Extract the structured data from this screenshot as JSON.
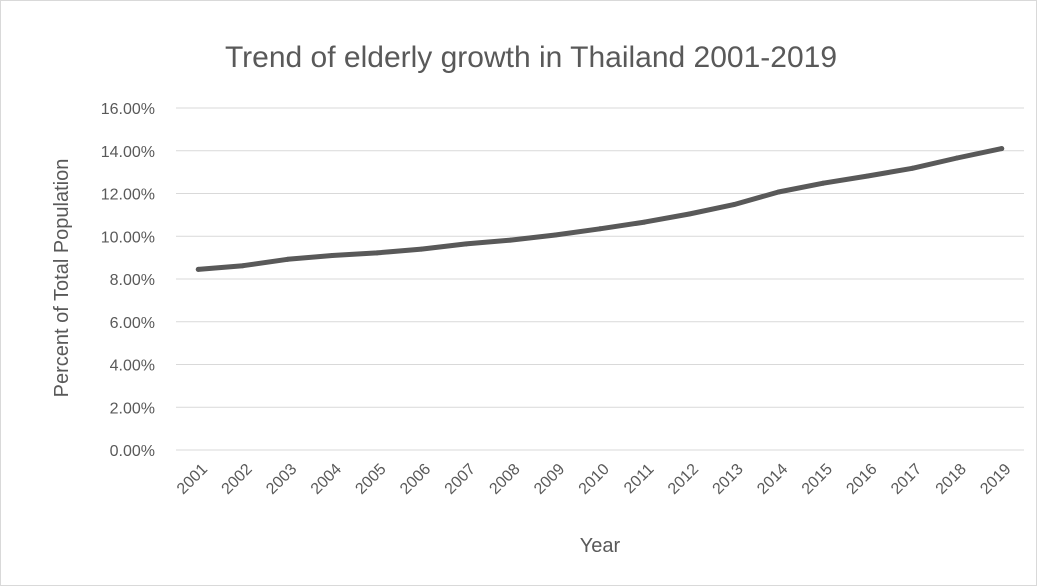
{
  "chart_data": {
    "type": "line",
    "title": "Trend of  elderly growth in Thailand 2001-2019",
    "xlabel": "Year",
    "ylabel": "Percent of Total Population",
    "categories": [
      "2001",
      "2002",
      "2003",
      "2004",
      "2005",
      "2006",
      "2007",
      "2008",
      "2009",
      "2010",
      "2011",
      "2012",
      "2013",
      "2014",
      "2015",
      "2016",
      "2017",
      "2018",
      "2019"
    ],
    "series": [
      {
        "values": [
          8.45,
          8.62,
          8.92,
          9.1,
          9.22,
          9.4,
          9.64,
          9.82,
          10.06,
          10.35,
          10.66,
          11.04,
          11.48,
          12.07,
          12.48,
          12.82,
          13.18,
          13.66,
          14.1
        ]
      }
    ],
    "ylim": [
      0,
      16
    ],
    "yticks": [
      "0.00%",
      "2.00%",
      "4.00%",
      "6.00%",
      "8.00%",
      "10.00%",
      "12.00%",
      "14.00%",
      "16.00%"
    ],
    "ytick_values": [
      0,
      2,
      4,
      6,
      8,
      10,
      12,
      14,
      16
    ],
    "grid": true,
    "legend": "none",
    "colors": {
      "line": "#595959",
      "grid": "#d9d9d9",
      "text": "#595959"
    }
  }
}
